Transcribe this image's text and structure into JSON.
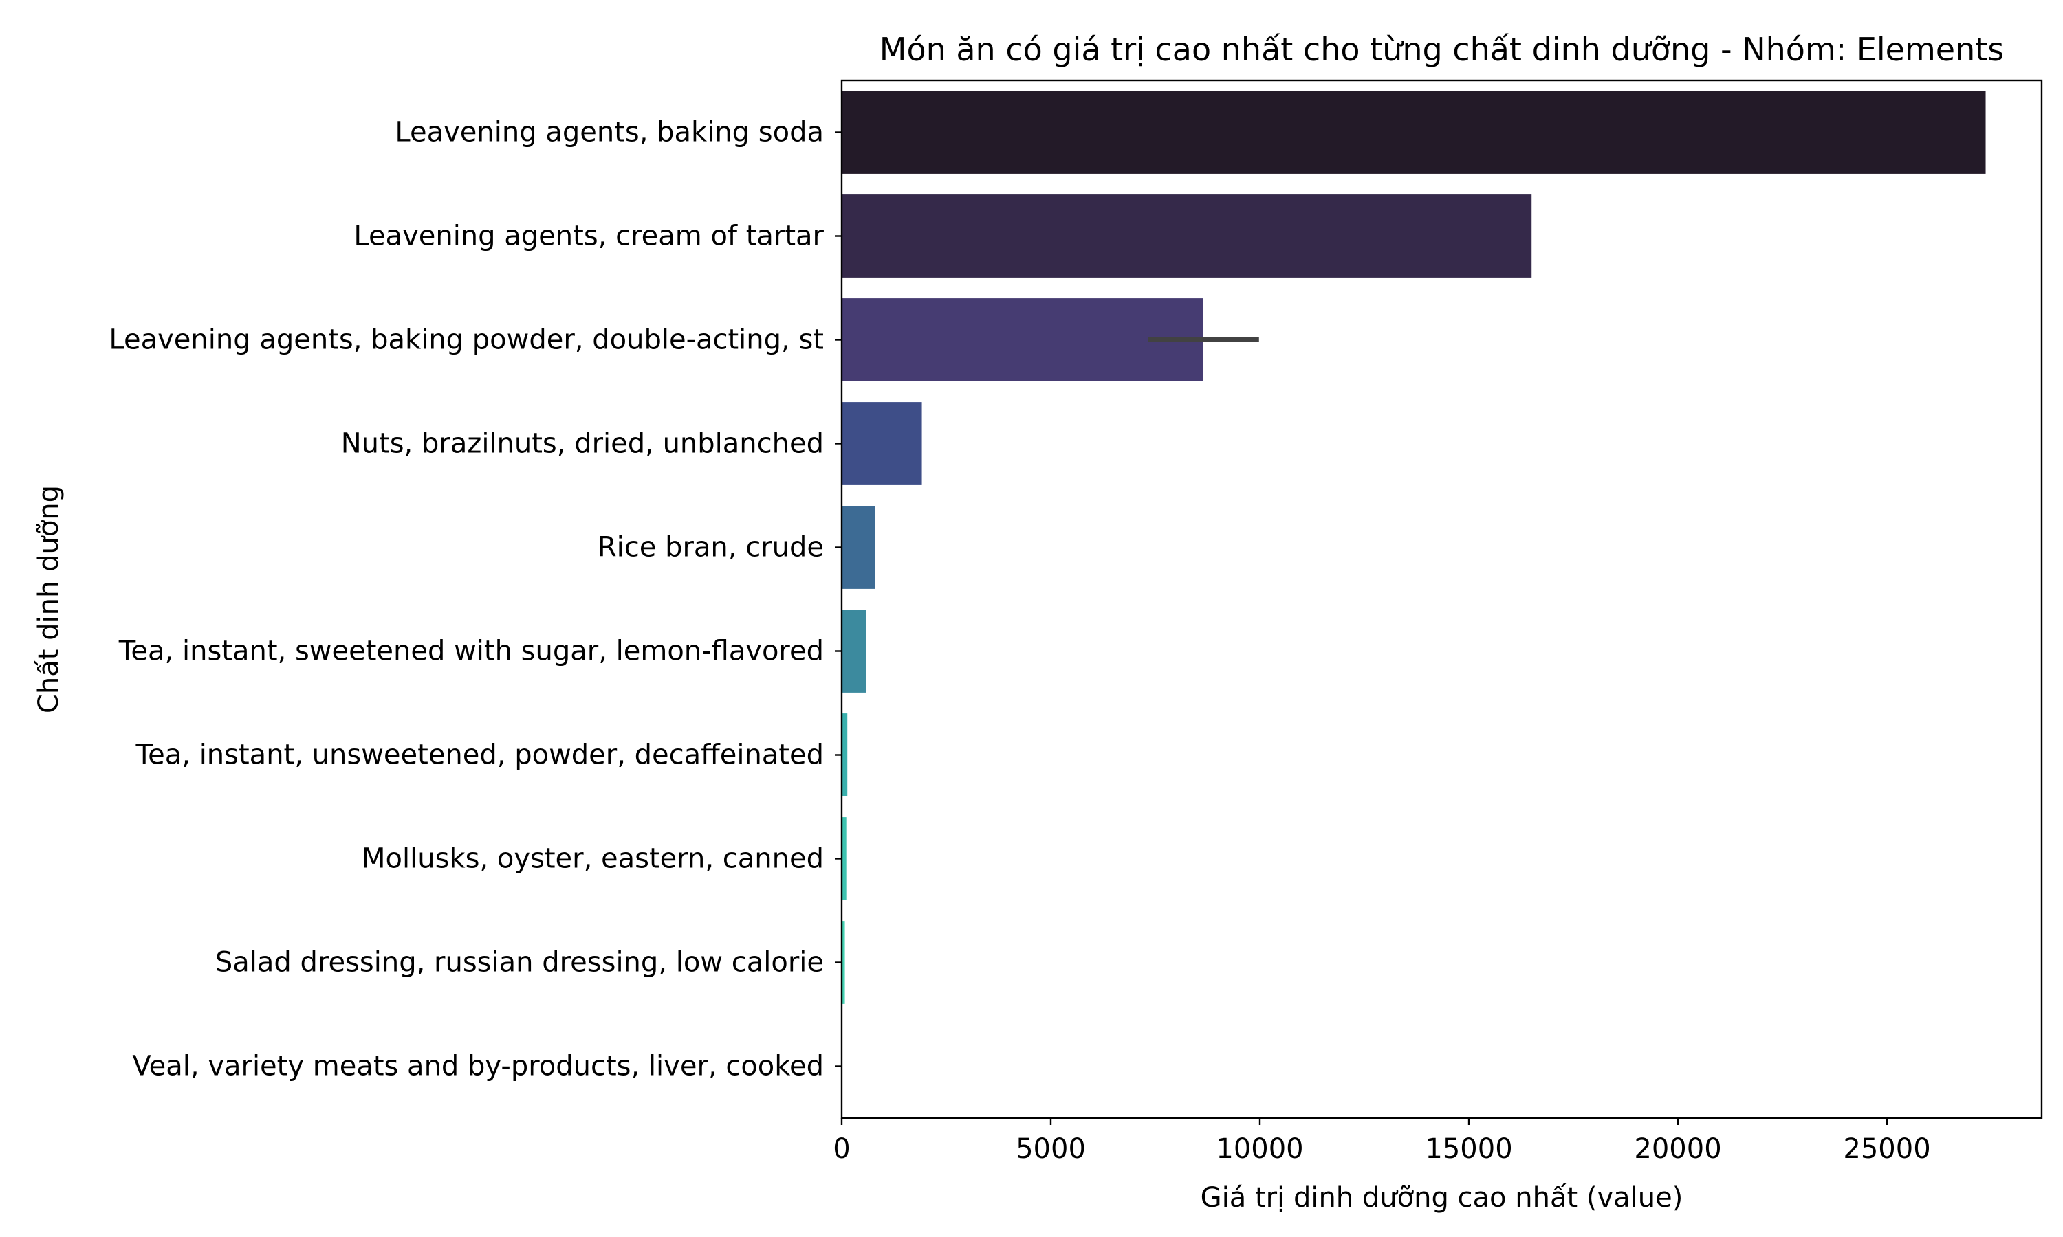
{
  "chart_data": {
    "type": "bar",
    "orientation": "horizontal",
    "title": "Món ăn có giá trị cao nhất cho từng chất dinh dưỡng - Nhóm: Elements",
    "xlabel": "Giá trị dinh dưỡng cao nhất (value)",
    "ylabel": "Chất dinh dưỡng",
    "xlim": [
      0,
      28700
    ],
    "xticks": [
      0,
      5000,
      10000,
      15000,
      20000,
      25000
    ],
    "grid": false,
    "legend": "none",
    "categories": [
      "Leavening agents, baking soda",
      "Leavening agents, cream of tartar",
      "Leavening agents, baking powder, double-acting, st",
      "Nuts, brazilnuts, dried, unblanched",
      "Rice bran, crude",
      "Tea, instant, sweetened with sugar, lemon-flavored",
      "Tea, instant, unsweetened, powder, decaffeinated",
      "Mollusks, oyster, eastern, canned",
      "Salad dressing, russian dressing, low calorie",
      "Veal, variety meats and by-products, liver, cooked"
    ],
    "values": [
      27360,
      16500,
      8650,
      1917,
      795,
      590,
      135,
      110,
      75,
      10
    ],
    "error_bars": [
      null,
      null,
      [
        7320,
        9980
      ],
      null,
      null,
      null,
      null,
      null,
      null,
      null
    ],
    "colors": [
      "#231a28",
      "#35294a",
      "#463c72",
      "#3e4e88",
      "#3d6b94",
      "#3c8a9e",
      "#3ab0ad",
      "#3ec3b0",
      "#45d0b1",
      "#4fdbb3"
    ],
    "error_bar_color": "#424242"
  }
}
